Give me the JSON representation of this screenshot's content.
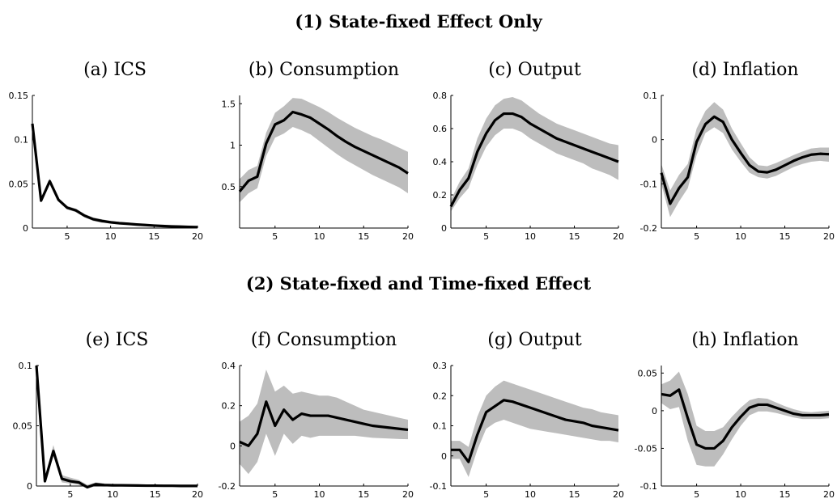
{
  "row_titles": [
    "(1) State-fixed Effect Only",
    "(2) State-fixed and Time-fixed Effect"
  ],
  "colors": {
    "line": "#000000",
    "band": "#bdbdbd",
    "axis": "#000000"
  },
  "chart_data": [
    {
      "type": "line",
      "title": "(a) ICS",
      "x": [
        1,
        2,
        3,
        4,
        5,
        6,
        7,
        8,
        9,
        10,
        11,
        12,
        13,
        14,
        15,
        16,
        17,
        18,
        19,
        20
      ],
      "series": [
        {
          "values": [
            0.118,
            0.031,
            0.053,
            0.032,
            0.023,
            0.02,
            0.014,
            0.01,
            0.008,
            0.0065,
            0.0055,
            0.0048,
            0.004,
            0.0034,
            0.0028,
            0.0023,
            0.0019,
            0.0016,
            0.0013,
            0.0011
          ]
        }
      ],
      "band": {
        "lower": [
          0.116,
          0.029,
          0.05,
          0.03,
          0.021,
          0.018,
          0.012,
          0.008,
          0.006,
          0.005,
          0.004,
          0.0035,
          0.003,
          0.0025,
          0.002,
          0.0015,
          0.0012,
          0.001,
          0.0008,
          0.0006
        ],
        "upper": [
          0.12,
          0.034,
          0.056,
          0.034,
          0.025,
          0.022,
          0.016,
          0.012,
          0.01,
          0.008,
          0.007,
          0.0062,
          0.0052,
          0.0045,
          0.0038,
          0.0032,
          0.0027,
          0.0022,
          0.0018,
          0.0016
        ]
      },
      "xlim": [
        1,
        20
      ],
      "ylim": [
        0,
        0.15
      ],
      "xticks": [
        5,
        10,
        15,
        20
      ],
      "yticks": [
        0,
        0.05,
        0.1,
        0.15
      ],
      "xtick_labels": [
        "5",
        "10",
        "15",
        "20"
      ],
      "ytick_labels": [
        "0",
        "0.05",
        "0.1",
        "0.15"
      ]
    },
    {
      "type": "line",
      "title": "(b) Consumption",
      "x": [
        1,
        2,
        3,
        4,
        5,
        6,
        7,
        8,
        9,
        10,
        11,
        12,
        13,
        14,
        15,
        16,
        17,
        18,
        19,
        20
      ],
      "series": [
        {
          "values": [
            0.44,
            0.57,
            0.62,
            1.02,
            1.25,
            1.3,
            1.4,
            1.37,
            1.33,
            1.26,
            1.19,
            1.11,
            1.04,
            0.98,
            0.93,
            0.88,
            0.83,
            0.78,
            0.73,
            0.66
          ]
        }
      ],
      "band": {
        "lower": [
          0.31,
          0.42,
          0.48,
          0.87,
          1.09,
          1.14,
          1.22,
          1.18,
          1.13,
          1.05,
          0.97,
          0.89,
          0.82,
          0.76,
          0.7,
          0.64,
          0.59,
          0.54,
          0.49,
          0.42
        ],
        "upper": [
          0.59,
          0.7,
          0.75,
          1.15,
          1.39,
          1.47,
          1.57,
          1.56,
          1.51,
          1.46,
          1.4,
          1.33,
          1.27,
          1.21,
          1.16,
          1.11,
          1.07,
          1.02,
          0.97,
          0.92
        ]
      },
      "xlim": [
        1,
        20
      ],
      "ylim": [
        0,
        1.6
      ],
      "xticks": [
        5,
        10,
        15,
        20
      ],
      "yticks": [
        0.5,
        1,
        1.5
      ],
      "xtick_labels": [
        "5",
        "10",
        "15",
        "20"
      ],
      "ytick_labels": [
        "0.5",
        "1",
        "1.5"
      ]
    },
    {
      "type": "line",
      "title": "(c) Output",
      "x": [
        1,
        2,
        3,
        4,
        5,
        6,
        7,
        8,
        9,
        10,
        11,
        12,
        13,
        14,
        15,
        16,
        17,
        18,
        19,
        20
      ],
      "series": [
        {
          "values": [
            0.13,
            0.23,
            0.3,
            0.46,
            0.57,
            0.65,
            0.69,
            0.69,
            0.67,
            0.63,
            0.6,
            0.57,
            0.54,
            0.52,
            0.5,
            0.48,
            0.46,
            0.44,
            0.42,
            0.4
          ]
        }
      ],
      "band": {
        "lower": [
          0.1,
          0.18,
          0.24,
          0.38,
          0.49,
          0.56,
          0.6,
          0.6,
          0.58,
          0.54,
          0.51,
          0.48,
          0.45,
          0.43,
          0.41,
          0.39,
          0.36,
          0.34,
          0.32,
          0.29
        ],
        "upper": [
          0.17,
          0.28,
          0.36,
          0.54,
          0.66,
          0.74,
          0.78,
          0.79,
          0.77,
          0.73,
          0.69,
          0.66,
          0.63,
          0.61,
          0.59,
          0.57,
          0.55,
          0.53,
          0.51,
          0.5
        ]
      },
      "xlim": [
        1,
        20
      ],
      "ylim": [
        0,
        0.8
      ],
      "xticks": [
        5,
        10,
        15,
        20
      ],
      "yticks": [
        0,
        0.2,
        0.4,
        0.6,
        0.8
      ],
      "xtick_labels": [
        "5",
        "10",
        "15",
        "20"
      ],
      "ytick_labels": [
        "0",
        "0.2",
        "0.4",
        "0.6",
        "0.8"
      ]
    },
    {
      "type": "line",
      "title": "(d) Inflation",
      "x": [
        1,
        2,
        3,
        4,
        5,
        6,
        7,
        8,
        9,
        10,
        11,
        12,
        13,
        14,
        15,
        16,
        17,
        18,
        19,
        20
      ],
      "series": [
        {
          "values": [
            -0.075,
            -0.145,
            -0.11,
            -0.085,
            -0.005,
            0.035,
            0.052,
            0.04,
            0.0,
            -0.03,
            -0.058,
            -0.072,
            -0.074,
            -0.068,
            -0.058,
            -0.048,
            -0.04,
            -0.034,
            -0.032,
            -0.033
          ]
        }
      ],
      "band": {
        "lower": [
          -0.1,
          -0.175,
          -0.14,
          -0.11,
          -0.035,
          0.015,
          0.028,
          0.015,
          -0.022,
          -0.05,
          -0.075,
          -0.085,
          -0.088,
          -0.082,
          -0.072,
          -0.062,
          -0.055,
          -0.05,
          -0.048,
          -0.05
        ],
        "upper": [
          -0.055,
          -0.115,
          -0.08,
          -0.055,
          0.025,
          0.065,
          0.085,
          0.068,
          0.025,
          -0.008,
          -0.04,
          -0.058,
          -0.06,
          -0.053,
          -0.044,
          -0.035,
          -0.027,
          -0.02,
          -0.018,
          -0.018
        ]
      },
      "xlim": [
        1,
        20
      ],
      "ylim": [
        -0.2,
        0.1
      ],
      "xticks": [
        5,
        10,
        15,
        20
      ],
      "yticks": [
        -0.2,
        -0.1,
        0,
        0.1
      ],
      "xtick_labels": [
        "5",
        "10",
        "15",
        "20"
      ],
      "ytick_labels": [
        "-0.2",
        "-0.1",
        "0",
        "0.1"
      ]
    },
    {
      "type": "line",
      "title": "(e) ICS",
      "x": [
        1,
        2,
        3,
        4,
        5,
        6,
        7,
        8,
        9,
        10,
        11,
        12,
        13,
        14,
        15,
        16,
        17,
        18,
        19,
        20
      ],
      "series": [
        {
          "values": [
            0.1,
            0.004,
            0.029,
            0.006,
            0.004,
            0.003,
            -0.001,
            0.0015,
            0.0008,
            0.0006,
            0.0006,
            0.0005,
            0.0004,
            0.0003,
            0.0003,
            0.0002,
            0.0002,
            0.0001,
            0.0001,
            0.0001
          ]
        }
      ],
      "band": {
        "lower": [
          0.098,
          0.002,
          0.025,
          0.003,
          0.002,
          0.001,
          -0.002,
          0.0,
          -0.0005,
          -0.0005,
          -0.0004,
          -0.0004,
          -0.0004,
          -0.0004,
          -0.0003,
          -0.0003,
          -0.0003,
          -0.0003,
          -0.0003,
          -0.0003
        ],
        "upper": [
          0.102,
          0.007,
          0.034,
          0.009,
          0.007,
          0.005,
          0.001,
          0.003,
          0.0022,
          0.0018,
          0.0016,
          0.0014,
          0.0012,
          0.001,
          0.0009,
          0.0008,
          0.0007,
          0.0006,
          0.0006,
          0.0005
        ]
      },
      "xlim": [
        1,
        20
      ],
      "ylim": [
        0,
        0.1
      ],
      "xticks": [
        5,
        10,
        15,
        20
      ],
      "yticks": [
        0,
        0.05,
        0.1
      ],
      "xtick_labels": [
        "5",
        "10",
        "15",
        "20"
      ],
      "ytick_labels": [
        "0",
        "0.05",
        "0.1"
      ]
    },
    {
      "type": "line",
      "title": "(f) Consumption",
      "x": [
        1,
        2,
        3,
        4,
        5,
        6,
        7,
        8,
        9,
        10,
        11,
        12,
        13,
        14,
        15,
        16,
        17,
        18,
        19,
        20
      ],
      "series": [
        {
          "values": [
            0.02,
            0.0,
            0.06,
            0.22,
            0.1,
            0.18,
            0.13,
            0.16,
            0.15,
            0.15,
            0.15,
            0.14,
            0.13,
            0.12,
            0.11,
            0.1,
            0.095,
            0.09,
            0.085,
            0.08
          ]
        }
      ],
      "band": {
        "lower": [
          -0.09,
          -0.14,
          -0.08,
          0.06,
          -0.05,
          0.06,
          0.01,
          0.05,
          0.04,
          0.05,
          0.05,
          0.05,
          0.05,
          0.05,
          0.045,
          0.04,
          0.038,
          0.036,
          0.034,
          0.033
        ],
        "upper": [
          0.12,
          0.15,
          0.21,
          0.38,
          0.27,
          0.3,
          0.26,
          0.27,
          0.26,
          0.25,
          0.25,
          0.24,
          0.22,
          0.2,
          0.18,
          0.17,
          0.16,
          0.15,
          0.14,
          0.13
        ]
      },
      "xlim": [
        1,
        20
      ],
      "ylim": [
        -0.2,
        0.4
      ],
      "xticks": [
        5,
        10,
        15,
        20
      ],
      "yticks": [
        -0.2,
        0,
        0.2,
        0.4
      ],
      "xtick_labels": [
        "5",
        "10",
        "15",
        "20"
      ],
      "ytick_labels": [
        "-0.2",
        "0",
        "0.2",
        "0.4"
      ]
    },
    {
      "type": "line",
      "title": "(g) Output",
      "x": [
        1,
        2,
        3,
        4,
        5,
        6,
        7,
        8,
        9,
        10,
        11,
        12,
        13,
        14,
        15,
        16,
        17,
        18,
        19,
        20
      ],
      "series": [
        {
          "values": [
            0.02,
            0.02,
            -0.02,
            0.07,
            0.145,
            0.165,
            0.185,
            0.18,
            0.17,
            0.16,
            0.15,
            0.14,
            0.13,
            0.12,
            0.115,
            0.11,
            0.1,
            0.095,
            0.09,
            0.085
          ]
        }
      ],
      "band": {
        "lower": [
          -0.01,
          -0.01,
          -0.07,
          0.02,
          0.09,
          0.11,
          0.12,
          0.11,
          0.1,
          0.09,
          0.085,
          0.08,
          0.075,
          0.07,
          0.065,
          0.06,
          0.055,
          0.05,
          0.05,
          0.045
        ],
        "upper": [
          0.05,
          0.05,
          0.03,
          0.13,
          0.2,
          0.23,
          0.25,
          0.24,
          0.23,
          0.22,
          0.21,
          0.2,
          0.19,
          0.18,
          0.17,
          0.16,
          0.155,
          0.145,
          0.14,
          0.135
        ]
      },
      "xlim": [
        1,
        20
      ],
      "ylim": [
        -0.1,
        0.3
      ],
      "xticks": [
        5,
        10,
        15,
        20
      ],
      "yticks": [
        -0.1,
        0,
        0.1,
        0.2,
        0.3
      ],
      "xtick_labels": [
        "5",
        "10",
        "15",
        "20"
      ],
      "ytick_labels": [
        "-0.1",
        "0",
        "0.1",
        "0.2",
        "0.3"
      ]
    },
    {
      "type": "line",
      "title": "(h) Inflation",
      "x": [
        1,
        2,
        3,
        4,
        5,
        6,
        7,
        8,
        9,
        10,
        11,
        12,
        13,
        14,
        15,
        16,
        17,
        18,
        19,
        20
      ],
      "series": [
        {
          "values": [
            0.022,
            0.02,
            0.028,
            -0.01,
            -0.045,
            -0.05,
            -0.05,
            -0.04,
            -0.022,
            -0.008,
            0.004,
            0.008,
            0.008,
            0.004,
            0.0,
            -0.004,
            -0.006,
            -0.006,
            -0.006,
            -0.005
          ]
        }
      ],
      "band": {
        "lower": [
          0.01,
          0.002,
          0.005,
          -0.04,
          -0.072,
          -0.074,
          -0.074,
          -0.058,
          -0.038,
          -0.02,
          -0.006,
          -0.001,
          -0.001,
          -0.003,
          -0.006,
          -0.009,
          -0.011,
          -0.011,
          -0.011,
          -0.01
        ],
        "upper": [
          0.035,
          0.04,
          0.052,
          0.022,
          -0.02,
          -0.027,
          -0.027,
          -0.022,
          -0.008,
          0.004,
          0.014,
          0.017,
          0.016,
          0.011,
          0.006,
          0.002,
          -0.001,
          -0.002,
          -0.001,
          0.0
        ]
      },
      "xlim": [
        1,
        20
      ],
      "ylim": [
        -0.1,
        0.06
      ],
      "xticks": [
        5,
        10,
        15,
        20
      ],
      "yticks": [
        -0.1,
        -0.05,
        0,
        0.05
      ],
      "xtick_labels": [
        "5",
        "10",
        "15",
        "20"
      ],
      "ytick_labels": [
        "-0.1",
        "-0.05",
        "0",
        "0.05"
      ]
    }
  ]
}
